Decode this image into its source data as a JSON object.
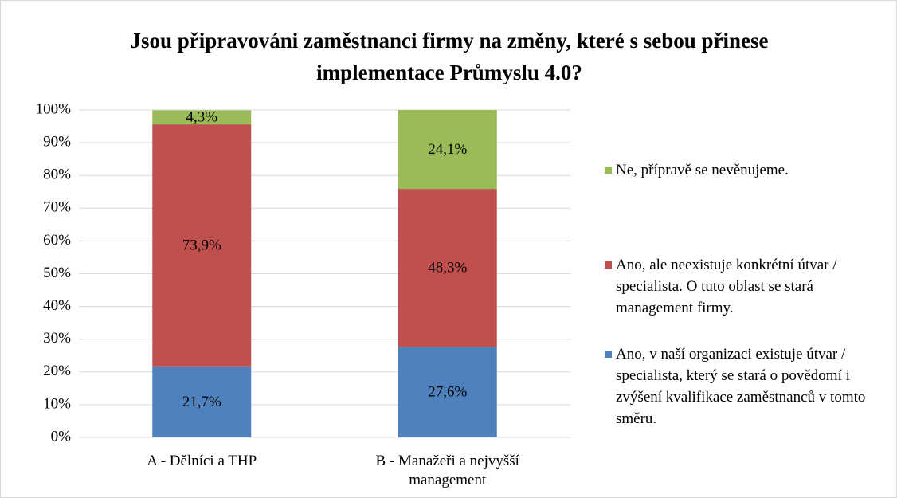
{
  "chart_data": {
    "type": "stacked_bar",
    "title": "Jsou připravováni zaměstnanci firmy na změny, které s sebou přinese implementace Průmyslu 4.0?",
    "categories": [
      "A - Dělníci a THP",
      "B - Manažeři a nejvyšší management"
    ],
    "series": [
      {
        "name": "Ano, v naší organizaci existuje útvar / specialista, který se stará o povědomí i zvýšení kvalifikace zaměstnanců v tomto směru.",
        "color": "#4f81bd",
        "values": [
          21.7,
          27.6
        ],
        "value_labels": [
          "21,7%",
          "27,6%"
        ]
      },
      {
        "name": "Ano, ale neexistuje konkrétní útvar / specialista. O tuto oblast se stará management firmy.",
        "color": "#c0504d",
        "values": [
          73.9,
          48.3
        ],
        "value_labels": [
          "73,9%",
          "48,3%"
        ]
      },
      {
        "name": "Ne, přípravě se nevěnujeme.",
        "color": "#9bbb59",
        "values": [
          4.3,
          24.1
        ],
        "value_labels": [
          "4,3%",
          "24,1%"
        ]
      }
    ],
    "ylim": [
      0,
      100
    ],
    "yticks": [
      {
        "value": 0,
        "label": "0%"
      },
      {
        "value": 10,
        "label": "10%"
      },
      {
        "value": 20,
        "label": "20%"
      },
      {
        "value": 30,
        "label": "30%"
      },
      {
        "value": 40,
        "label": "40%"
      },
      {
        "value": 50,
        "label": "50%"
      },
      {
        "value": 60,
        "label": "60%"
      },
      {
        "value": 70,
        "label": "70%"
      },
      {
        "value": 80,
        "label": "80%"
      },
      {
        "value": 90,
        "label": "90%"
      },
      {
        "value": 100,
        "label": "100%"
      }
    ],
    "grid": true,
    "legend": "right"
  }
}
